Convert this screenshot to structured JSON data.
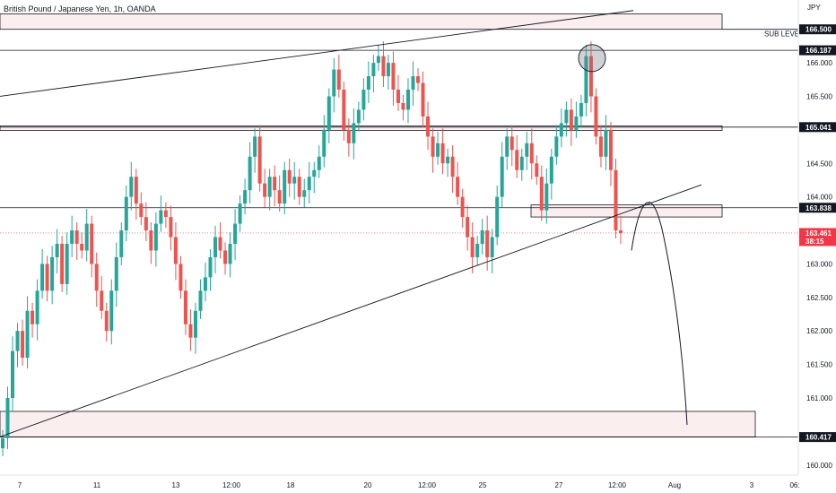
{
  "header": {
    "title": "British Pound / Japanese Yen, 1h, OANDA",
    "currency": "JPY"
  },
  "chart_data": {
    "type": "candlestick",
    "title": "British Pound / Japanese Yen, 1h, OANDA",
    "ylim": [
      159.85,
      166.75
    ],
    "y_ticks": [
      "160.000",
      "160.500",
      "161.000",
      "161.500",
      "162.000",
      "162.500",
      "163.000",
      "163.500",
      "164.000",
      "164.500",
      "165.000",
      "165.500",
      "166.000"
    ],
    "x_ticks": [
      "7",
      "11",
      "13",
      "12:00",
      "18",
      "20",
      "12:00",
      "25",
      "27",
      "12:00",
      "Aug",
      "3",
      "06:"
    ],
    "price_tags": [
      {
        "label": "166.500",
        "value": 166.5,
        "style": "dark"
      },
      {
        "label": "166.187",
        "value": 166.187,
        "style": "dark"
      },
      {
        "label": "165.041",
        "value": 165.041,
        "style": "dark"
      },
      {
        "label": "163.838",
        "value": 163.838,
        "style": "dark"
      },
      {
        "label": "163.461",
        "value": 163.461,
        "style": "red"
      },
      {
        "label": "160.417",
        "value": 160.417,
        "style": "dark"
      }
    ],
    "countdown": "38:15",
    "annotations": [
      {
        "text": "SUB LEVEL",
        "at": 166.5
      }
    ],
    "zones": [
      {
        "top": 166.73,
        "bottom": 166.5
      },
      {
        "top": 165.06,
        "bottom": 164.99
      },
      {
        "top": 163.88,
        "bottom": 163.7
      },
      {
        "top": 160.8,
        "bottom": 160.42
      }
    ],
    "lines": [
      {
        "name": "upper-trend",
        "y_start": 165.5,
        "y_end": 166.78
      },
      {
        "name": "lower-trend",
        "y_start": 160.42,
        "y_end": 164.18
      }
    ],
    "lines_h": [
      166.187,
      165.041,
      163.838,
      160.417
    ],
    "closes": [
      160.4,
      161.0,
      161.7,
      162.0,
      161.6,
      162.3,
      162.1,
      162.6,
      163.0,
      162.6,
      163.1,
      163.3,
      162.7,
      163.3,
      163.5,
      163.3,
      163.2,
      163.6,
      163.0,
      162.6,
      162.3,
      162.0,
      162.6,
      163.1,
      163.5,
      164.0,
      164.3,
      163.9,
      163.7,
      163.5,
      163.2,
      163.6,
      163.8,
      163.7,
      163.4,
      163.0,
      162.6,
      162.1,
      161.9,
      162.3,
      162.6,
      162.8,
      163.1,
      163.4,
      163.2,
      163.0,
      163.3,
      163.6,
      163.9,
      164.1,
      164.6,
      164.9,
      164.2,
      164.0,
      164.3,
      164.1,
      163.9,
      164.4,
      164.2,
      164.3,
      164.0,
      164.1,
      164.3,
      164.4,
      164.6,
      165.0,
      165.5,
      165.9,
      165.6,
      165.0,
      164.8,
      165.1,
      165.3,
      165.6,
      165.8,
      166.0,
      166.1,
      165.8,
      166.0,
      165.6,
      165.4,
      165.3,
      165.6,
      165.8,
      165.7,
      165.2,
      164.9,
      164.6,
      164.8,
      164.5,
      164.6,
      164.3,
      164.0,
      163.7,
      163.4,
      163.1,
      163.3,
      163.5,
      163.1,
      163.4,
      164.0,
      164.6,
      164.9,
      164.7,
      164.4,
      164.6,
      164.8,
      164.5,
      164.3,
      163.8,
      164.2,
      164.6,
      164.9,
      165.1,
      165.3,
      165.0,
      165.2,
      165.4,
      166.1,
      165.5,
      164.9,
      164.6,
      165.0,
      164.4,
      163.5,
      163.46
    ]
  }
}
